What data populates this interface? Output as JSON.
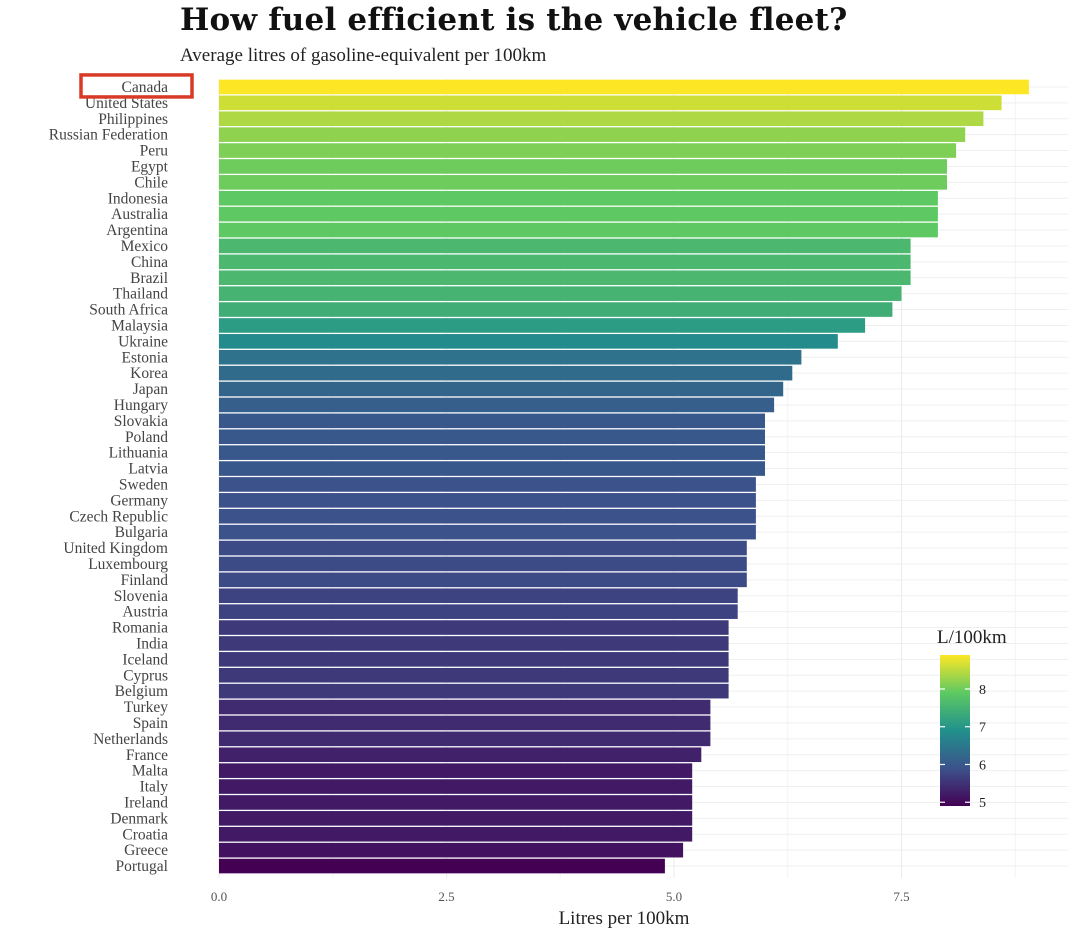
{
  "title": "How fuel efficient is the vehicle fleet?",
  "subtitle": "Average litres of gasoline-equivalent per 100km",
  "highlighted_country": "Canada",
  "chart_data": {
    "type": "bar",
    "orientation": "horizontal",
    "xlabel": "Litres per 100km",
    "ylabel": "",
    "xlim": [
      0,
      9.2
    ],
    "x_ticks": [
      0,
      2.5,
      5,
      7.5
    ],
    "x_tick_labels": [
      "0.0",
      "2.5",
      "5.0",
      "7.5"
    ],
    "grid": true,
    "categories": [
      "Canada",
      "United States",
      "Philippines",
      "Russian Federation",
      "Peru",
      "Egypt",
      "Chile",
      "Indonesia",
      "Australia",
      "Argentina",
      "Mexico",
      "China",
      "Brazil",
      "Thailand",
      "South Africa",
      "Malaysia",
      "Ukraine",
      "Estonia",
      "Korea",
      "Japan",
      "Hungary",
      "Slovakia",
      "Poland",
      "Lithuania",
      "Latvia",
      "Sweden",
      "Germany",
      "Czech Republic",
      "Bulgaria",
      "United Kingdom",
      "Luxembourg",
      "Finland",
      "Slovenia",
      "Austria",
      "Romania",
      "India",
      "Iceland",
      "Cyprus",
      "Belgium",
      "Turkey",
      "Spain",
      "Netherlands",
      "France",
      "Malta",
      "Italy",
      "Ireland",
      "Denmark",
      "Croatia",
      "Greece",
      "Portugal"
    ],
    "values": [
      8.9,
      8.6,
      8.4,
      8.2,
      8.1,
      8.0,
      8.0,
      7.9,
      7.9,
      7.9,
      7.6,
      7.6,
      7.6,
      7.5,
      7.4,
      7.1,
      6.8,
      6.4,
      6.3,
      6.2,
      6.1,
      6.0,
      6.0,
      6.0,
      6.0,
      5.9,
      5.9,
      5.9,
      5.9,
      5.8,
      5.8,
      5.8,
      5.7,
      5.7,
      5.6,
      5.6,
      5.6,
      5.6,
      5.6,
      5.4,
      5.4,
      5.4,
      5.3,
      5.2,
      5.2,
      5.2,
      5.2,
      5.2,
      5.1,
      4.9
    ],
    "legend": {
      "title": "L/100km",
      "position": "right",
      "range": [
        4.9,
        8.9
      ],
      "ticks": [
        5,
        6,
        7,
        8
      ],
      "tick_labels": [
        "5",
        "6",
        "7",
        "8"
      ],
      "colors": [
        "#440154",
        "#3b528b",
        "#21918c",
        "#5ec962",
        "#fde725"
      ]
    }
  }
}
